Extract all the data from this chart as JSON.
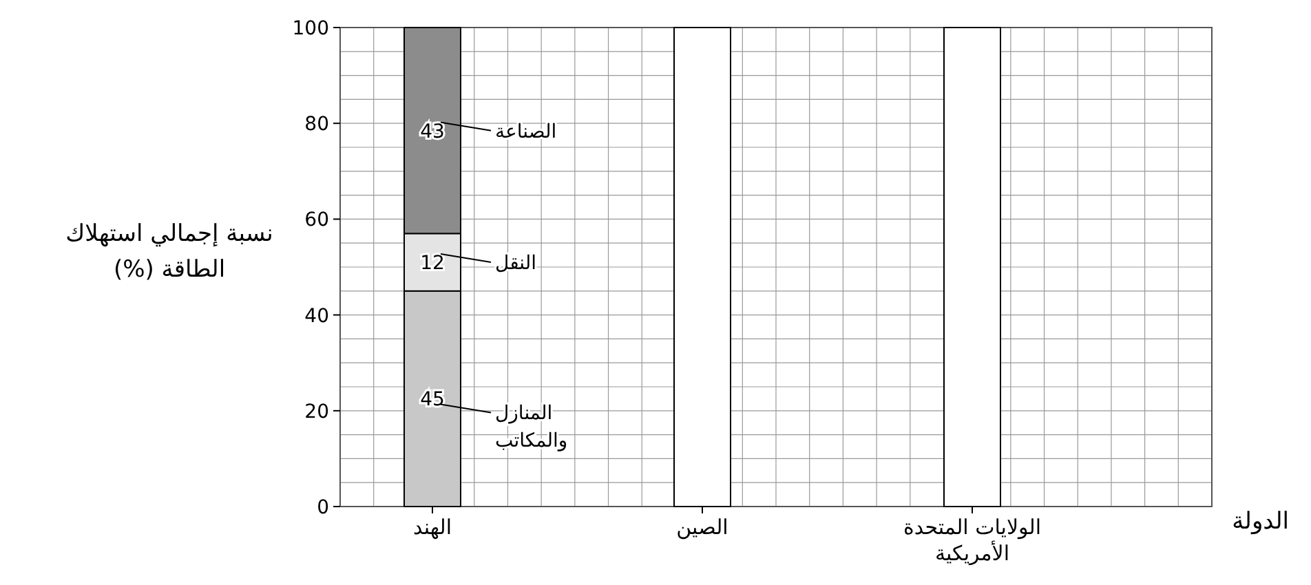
{
  "chart_data": {
    "type": "bar",
    "stacked": true,
    "xlabel": "الدولة",
    "ylabel": "نسبة إجمالي استهلاك الطاقة (%)",
    "categories": [
      "الهند",
      "الصين",
      "الولايات المتحدة الأمريكية"
    ],
    "series": [
      {
        "name": "المنازل والمكاتب",
        "color": "#c8c8c8",
        "values": [
          45,
          null,
          null
        ],
        "value_labels": [
          "45",
          null,
          null
        ]
      },
      {
        "name": "النقل",
        "color": "#e4e4e4",
        "values": [
          12,
          null,
          null
        ],
        "value_labels": [
          "12",
          null,
          null
        ]
      },
      {
        "name": "الصناعة",
        "color": "#8c8c8c",
        "values": [
          43,
          null,
          null
        ],
        "value_labels": [
          "43",
          null,
          null
        ]
      },
      {
        "color": "#ffffff",
        "values": [
          null,
          100,
          100
        ]
      }
    ],
    "ylim": [
      0,
      100
    ],
    "yticks": [
      0,
      20,
      40,
      60,
      80,
      100
    ],
    "grid": true,
    "legend": "left"
  }
}
